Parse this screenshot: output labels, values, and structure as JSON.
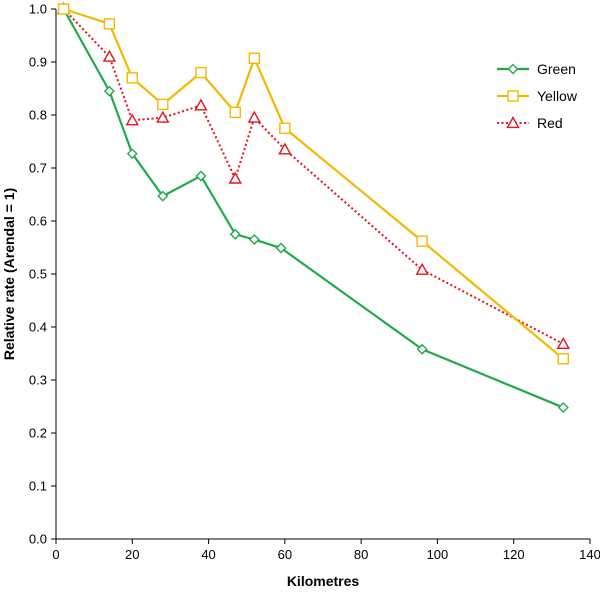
{
  "chart_data": {
    "type": "line",
    "title": "",
    "xlabel": "Kilometres",
    "ylabel": "Relative rate (Arendal = 1)",
    "xlim": [
      0,
      140
    ],
    "ylim": [
      0,
      1
    ],
    "xticks": [
      "0",
      "20",
      "40",
      "60",
      "80",
      "100",
      "120",
      "140"
    ],
    "yticks": [
      "0.0",
      "0.1",
      "0.2",
      "0.3",
      "0.4",
      "0.5",
      "0.6",
      "0.7",
      "0.8",
      "0.9",
      "1.0"
    ],
    "grid": false,
    "legend_position": "top-right",
    "series": [
      {
        "name": "Green",
        "color": "#1faa4a",
        "marker": "diamond",
        "line_style": "solid",
        "x": [
          2,
          14,
          20,
          28,
          38,
          47,
          52,
          59,
          96,
          133
        ],
        "y": [
          1.0,
          0.845,
          0.727,
          0.647,
          0.685,
          0.575,
          0.565,
          0.549,
          0.358,
          0.248
        ]
      },
      {
        "name": "Yellow",
        "color": "#f5b800",
        "marker": "square",
        "line_style": "solid",
        "x": [
          2,
          14,
          20,
          28,
          38,
          47,
          52,
          60,
          96,
          133
        ],
        "y": [
          1.0,
          0.972,
          0.87,
          0.82,
          0.88,
          0.805,
          0.907,
          0.775,
          0.562,
          0.34
        ]
      },
      {
        "name": "Red",
        "color": "#e3141b",
        "marker": "triangle",
        "line_style": "dotted",
        "x": [
          2,
          14,
          20,
          28,
          38,
          47,
          52,
          60,
          96,
          133
        ],
        "y": [
          1.0,
          0.91,
          0.79,
          0.795,
          0.818,
          0.68,
          0.795,
          0.735,
          0.508,
          0.368
        ]
      }
    ]
  }
}
